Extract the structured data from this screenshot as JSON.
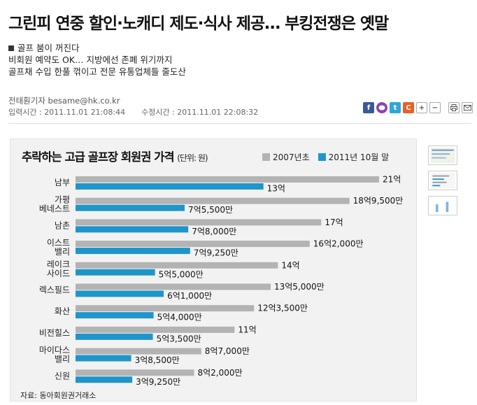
{
  "article": {
    "headline": "그린피 연중 할인·노캐디 제도·식사 제공… 부킹전쟁은 옛말",
    "summary": [
      "골프 붐이 꺼진다",
      "비회원 예약도 OK… 지방에선 존폐 위기까지",
      "골프채 수입 한풀 꺾이고 전문 유통업체들 줄도산"
    ],
    "byline": "전태훤기자 besame@hk.co.kr",
    "published_label": "입력시간 :",
    "published": "2011.11.01 21:08:44",
    "modified_label": "수정시간 :",
    "modified": "2011.11.01 22:08:32"
  },
  "share": {
    "facebook_icon": "f",
    "talk_icon": "talk",
    "twitter_icon": "t",
    "cyworld_icon": "C",
    "font_up": "+",
    "font_down": "−",
    "print_icon": "print",
    "email_icon": "email"
  },
  "colors": {
    "gray_bar": "#b3b3b3",
    "blue_bar": "#1f95c9"
  },
  "chart_data": {
    "type": "bar",
    "orientation": "horizontal",
    "title": "추락하는 고급 골프장 회원권 가격",
    "unit": "(단위: 원)",
    "source": "자료: 동아회원권거래소",
    "categories": [
      [
        "남부"
      ],
      [
        "가평",
        "베네스트"
      ],
      [
        "남촌"
      ],
      [
        "이스트",
        "밸리"
      ],
      [
        "레이크",
        "사이드"
      ],
      [
        "렉스필드"
      ],
      [
        "화산"
      ],
      [
        "비전힐스"
      ],
      [
        "마이다스",
        "밸리"
      ],
      [
        "신원"
      ]
    ],
    "series": [
      {
        "name": "2007년초",
        "color": "#b3b3b3",
        "values": [
          2100000000,
          1895000000,
          1700000000,
          1620000000,
          1400000000,
          1350000000,
          1235000000,
          1100000000,
          870000000,
          820000000
        ],
        "labels": [
          "21억",
          "18억9,500만",
          "17억",
          "16억2,000만",
          "14억",
          "13억5,000만",
          "12억3,500만",
          "11억",
          "8억7,000만",
          "8억2,000만"
        ]
      },
      {
        "name": "2011년 10월 말",
        "color": "#1f95c9",
        "values": [
          1300000000,
          755000000,
          780000000,
          792500000,
          550000000,
          610000000,
          540000000,
          535000000,
          385000000,
          392500000
        ],
        "labels": [
          "13억",
          "7억5,500만",
          "7억8,000만",
          "7억9,250만",
          "5억5,000만",
          "6억1,000만",
          "5억4,000만",
          "5억3,500만",
          "3억8,500만",
          "3억9,250만"
        ]
      }
    ],
    "xlim": [
      0,
      2100000000
    ],
    "grid": false,
    "legend": "top-right"
  }
}
